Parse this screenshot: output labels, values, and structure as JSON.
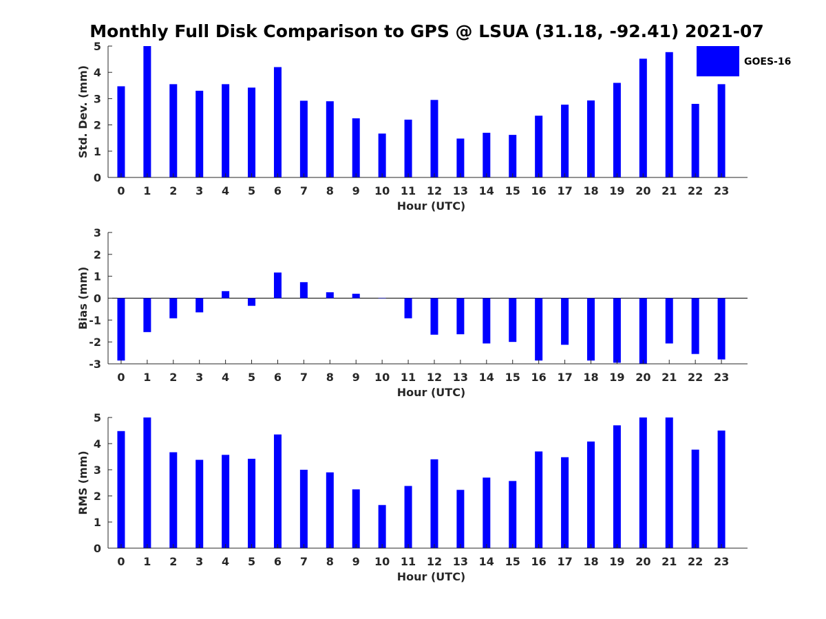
{
  "figure": {
    "title": "Monthly Full Disk Comparison to GPS @ LSUA (31.18, -92.41) 2021-07",
    "legend": {
      "label": "GOES-16",
      "color": "#0000ff",
      "placement": "top-right"
    }
  },
  "chart_data": [
    {
      "type": "bar",
      "xlabel": "Hour (UTC)",
      "ylabel": "Std. Dev. (mm)",
      "ylim": [
        0,
        5
      ],
      "yticks": [
        0,
        1,
        2,
        3,
        4,
        5
      ],
      "categories": [
        "0",
        "1",
        "2",
        "3",
        "4",
        "5",
        "6",
        "7",
        "8",
        "9",
        "10",
        "11",
        "12",
        "13",
        "14",
        "15",
        "16",
        "17",
        "18",
        "19",
        "20",
        "21",
        "22",
        "23"
      ],
      "series": [
        {
          "name": "GOES-16",
          "color": "#0000ff",
          "values": [
            3.47,
            5.0,
            3.55,
            3.3,
            3.55,
            3.42,
            4.2,
            2.92,
            2.9,
            2.25,
            1.67,
            2.2,
            2.95,
            1.48,
            1.7,
            1.62,
            2.35,
            2.77,
            2.93,
            3.6,
            4.52,
            4.77,
            2.8,
            3.55
          ]
        }
      ]
    },
    {
      "type": "bar",
      "xlabel": "Hour (UTC)",
      "ylabel": "Bias (mm)",
      "ylim": [
        -3,
        3
      ],
      "yticks": [
        -3,
        -2,
        -1,
        0,
        1,
        2,
        3
      ],
      "categories": [
        "0",
        "1",
        "2",
        "3",
        "4",
        "5",
        "6",
        "7",
        "8",
        "9",
        "10",
        "11",
        "12",
        "13",
        "14",
        "15",
        "16",
        "17",
        "18",
        "19",
        "20",
        "21",
        "22",
        "23"
      ],
      "series": [
        {
          "name": "GOES-16",
          "color": "#0000ff",
          "values": [
            -2.85,
            -1.55,
            -0.92,
            -0.65,
            0.32,
            -0.35,
            1.17,
            0.73,
            0.27,
            0.2,
            0.0,
            -0.92,
            -1.67,
            -1.65,
            -2.07,
            -2.0,
            -2.85,
            -2.13,
            -2.85,
            -2.95,
            -3.0,
            -2.07,
            -2.55,
            -2.8
          ]
        }
      ]
    },
    {
      "type": "bar",
      "xlabel": "Hour (UTC)",
      "ylabel": "RMS (mm)",
      "ylim": [
        0,
        5
      ],
      "yticks": [
        0,
        1,
        2,
        3,
        4,
        5
      ],
      "categories": [
        "0",
        "1",
        "2",
        "3",
        "4",
        "5",
        "6",
        "7",
        "8",
        "9",
        "10",
        "11",
        "12",
        "13",
        "14",
        "15",
        "16",
        "17",
        "18",
        "19",
        "20",
        "21",
        "22",
        "23"
      ],
      "series": [
        {
          "name": "GOES-16",
          "color": "#0000ff",
          "values": [
            4.48,
            5.0,
            3.67,
            3.38,
            3.57,
            3.42,
            4.35,
            3.0,
            2.9,
            2.25,
            1.65,
            2.38,
            3.4,
            2.23,
            2.7,
            2.57,
            3.7,
            3.48,
            4.08,
            4.7,
            5.0,
            5.0,
            3.77,
            4.5
          ]
        }
      ]
    }
  ]
}
